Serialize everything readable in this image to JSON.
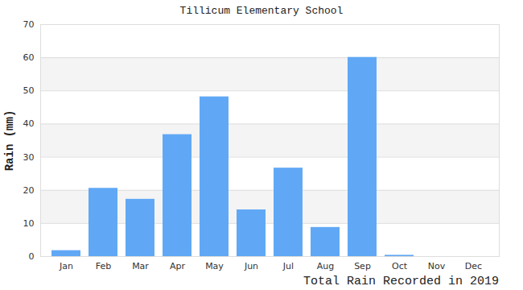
{
  "chart_data": {
    "type": "bar",
    "title": "Tillicum Elementary School",
    "xlabel": "Total Rain Recorded in 2019",
    "ylabel": "Rain (mm)",
    "categories": [
      "Jan",
      "Feb",
      "Mar",
      "Apr",
      "May",
      "Jun",
      "Jul",
      "Aug",
      "Sep",
      "Oct",
      "Nov",
      "Dec"
    ],
    "values": [
      1.8,
      20.6,
      17.3,
      36.8,
      48.2,
      14.1,
      26.7,
      8.8,
      60.1,
      0.4,
      0,
      0
    ],
    "color": "#60a8f5",
    "ylim": [
      0,
      70
    ],
    "yticks": [
      0,
      10,
      20,
      30,
      40,
      50,
      60,
      70
    ],
    "grid": true
  }
}
